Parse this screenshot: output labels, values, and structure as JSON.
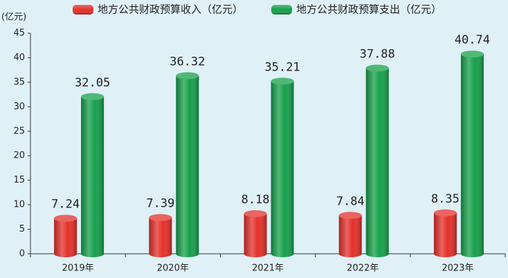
{
  "chart_data": {
    "type": "bar",
    "ylabel": "(亿元)",
    "categories": [
      "2019年",
      "2020年",
      "2021年",
      "2022年",
      "2023年"
    ],
    "series": [
      {
        "name": "地方公共财政预算收入（亿元）",
        "color": "#e5302a",
        "values": [
          7.24,
          7.39,
          8.18,
          7.84,
          8.35
        ]
      },
      {
        "name": "地方公共财政预算支出（亿元）",
        "color": "#16a04a",
        "values": [
          32.05,
          36.32,
          35.21,
          37.88,
          40.74
        ]
      }
    ],
    "ylim": [
      0,
      45
    ],
    "yticks": [
      0,
      5,
      10,
      15,
      20,
      25,
      30,
      35,
      40,
      45
    ],
    "grid": false
  }
}
